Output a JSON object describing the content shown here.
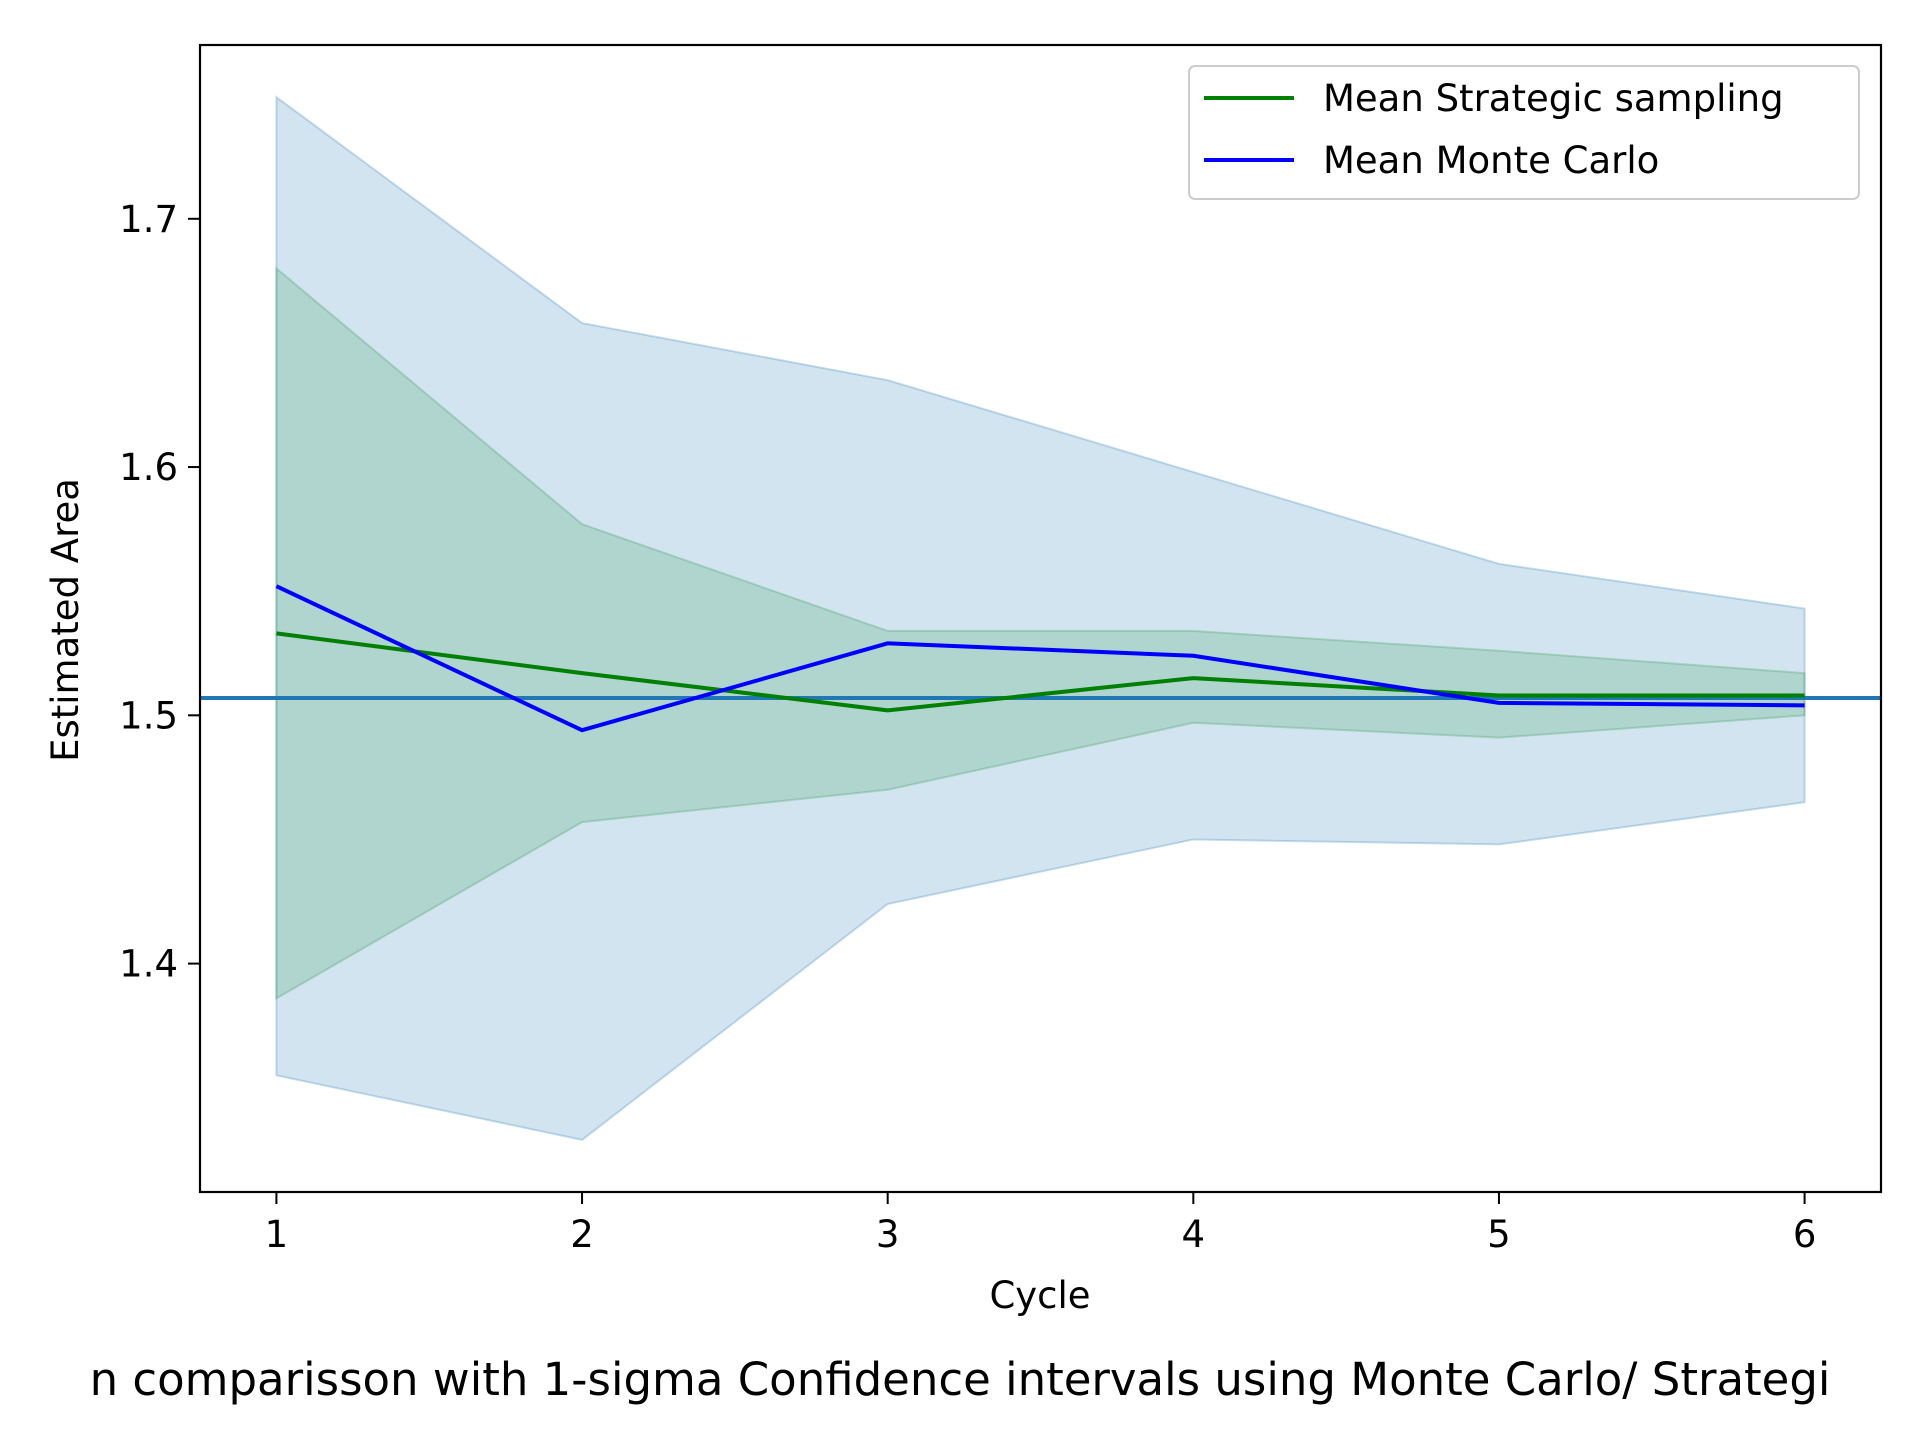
{
  "chart_data": {
    "type": "line",
    "title": "n comparisson with 1-sigma Confidence intervals using Monte Carlo/ Strategi",
    "xlabel": "Cycle",
    "ylabel": "Estimated Area",
    "x": [
      1,
      2,
      3,
      4,
      5,
      6
    ],
    "xlim": [
      0.75,
      6.25
    ],
    "ylim": [
      1.308,
      1.77
    ],
    "xticks": [
      1,
      2,
      3,
      4,
      5,
      6
    ],
    "yticks": [
      1.4,
      1.5,
      1.6,
      1.7
    ],
    "xtick_labels": [
      "1",
      "2",
      "3",
      "4",
      "5",
      "6"
    ],
    "ytick_labels": [
      "1.4",
      "1.5",
      "1.6",
      "1.7"
    ],
    "grid": false,
    "legend_position": "top-right",
    "series": [
      {
        "name": "Mean Strategic sampling",
        "color": "#008000",
        "values": [
          1.533,
          1.517,
          1.502,
          1.515,
          1.508,
          1.508
        ],
        "band_upper": [
          1.68,
          1.577,
          1.534,
          1.534,
          1.526,
          1.517
        ],
        "band_lower": [
          1.386,
          1.457,
          1.47,
          1.497,
          1.491,
          1.5
        ],
        "band_color": "#2ca02c"
      },
      {
        "name": "Mean Monte Carlo",
        "color": "#0000ff",
        "values": [
          1.552,
          1.494,
          1.529,
          1.524,
          1.505,
          1.504
        ],
        "band_upper": [
          1.749,
          1.658,
          1.635,
          1.598,
          1.561,
          1.543
        ],
        "band_lower": [
          1.355,
          1.329,
          1.424,
          1.45,
          1.448,
          1.465
        ],
        "band_color": "#1f77b4"
      }
    ],
    "reference_line": {
      "y": 1.507,
      "color": "#1f77b4"
    }
  }
}
